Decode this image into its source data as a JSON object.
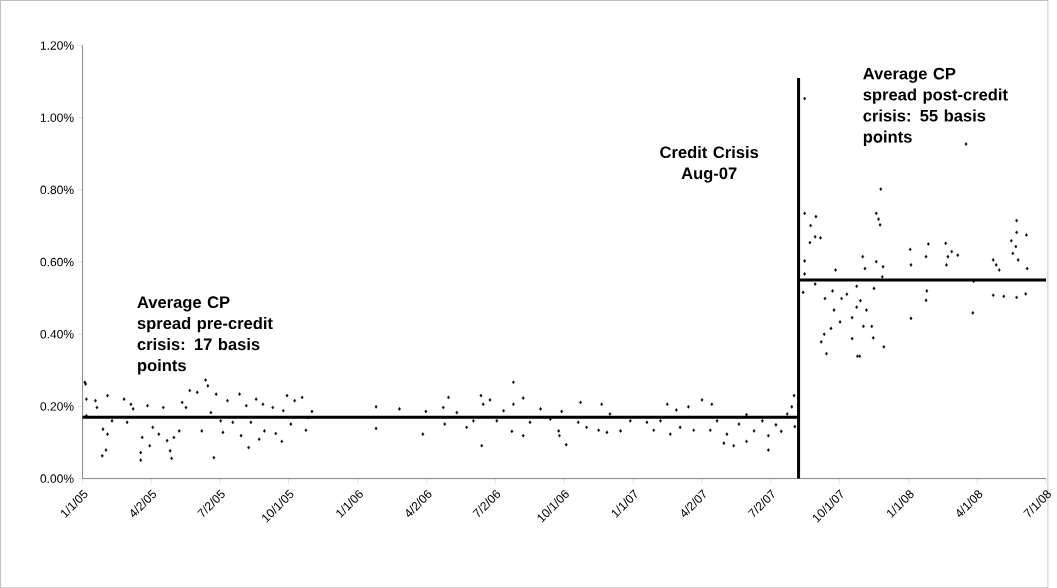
{
  "chart_data": {
    "type": "scatter",
    "marker": "diamond",
    "xlim": [
      "2005-01-01",
      "2008-07-01"
    ],
    "xticks": [
      {
        "value": "2005-01-01",
        "label": "1/1/05"
      },
      {
        "value": "2005-04-02",
        "label": "4/2/05"
      },
      {
        "value": "2005-07-02",
        "label": "7/2/05"
      },
      {
        "value": "2005-10-01",
        "label": "10/1/05"
      },
      {
        "value": "2006-01-01",
        "label": "1/1/06"
      },
      {
        "value": "2006-04-02",
        "label": "4/2/06"
      },
      {
        "value": "2006-07-02",
        "label": "7/2/06"
      },
      {
        "value": "2006-10-01",
        "label": "10/1/06"
      },
      {
        "value": "2007-01-01",
        "label": "1/1/07"
      },
      {
        "value": "2007-04-02",
        "label": "4/2/07"
      },
      {
        "value": "2007-07-02",
        "label": "7/2/07"
      },
      {
        "value": "2007-10-01",
        "label": "10/1/07"
      },
      {
        "value": "2008-01-01",
        "label": "1/1/08"
      },
      {
        "value": "2008-04-01",
        "label": "4/1/08"
      },
      {
        "value": "2008-07-01",
        "label": "7/1/08"
      }
    ],
    "ylim": [
      0,
      1.2
    ],
    "yticks": [
      {
        "value": 0,
        "label": "0.00%"
      },
      {
        "value": 0.2,
        "label": "0.20%"
      },
      {
        "value": 0.4,
        "label": "0.40%"
      },
      {
        "value": 0.6,
        "label": "0.60%"
      },
      {
        "value": 0.8,
        "label": "0.80%"
      },
      {
        "value": 1.0,
        "label": "1.00%"
      },
      {
        "value": 1.2,
        "label": "1.20%"
      }
    ],
    "series": [
      {
        "color": "#000000",
        "x": [
          "2005-01-04",
          "2005-01-05",
          "2005-01-06",
          "2005-01-06",
          "2005-01-18",
          "2005-01-20",
          "2005-01-27",
          "2005-01-28",
          "2005-02-01",
          "2005-02-03",
          "2005-02-03",
          "2005-02-09",
          "2005-02-25",
          "2005-03-01",
          "2005-03-06",
          "2005-03-09",
          "2005-03-19",
          "2005-03-19",
          "2005-03-21",
          "2005-03-28",
          "2005-03-31",
          "2005-04-04",
          "2005-04-12",
          "2005-04-18",
          "2005-04-23",
          "2005-04-27",
          "2005-04-29",
          "2005-05-02",
          "2005-05-09",
          "2005-05-13",
          "2005-05-18",
          "2005-05-23",
          "2005-06-02",
          "2005-06-08",
          "2005-06-13",
          "2005-06-16",
          "2005-06-20",
          "2005-06-24",
          "2005-06-27",
          "2005-07-03",
          "2005-07-06",
          "2005-07-12",
          "2005-07-19",
          "2005-07-28",
          "2005-07-30",
          "2005-08-06",
          "2005-08-09",
          "2005-08-12",
          "2005-08-19",
          "2005-08-23",
          "2005-08-28",
          "2005-08-30",
          "2005-09-10",
          "2005-09-14",
          "2005-09-22",
          "2005-09-24",
          "2005-09-29",
          "2005-10-04",
          "2005-10-09",
          "2005-10-19",
          "2005-10-24",
          "2005-10-27",
          "2005-11-01",
          "2006-01-25",
          "2006-01-25",
          "2006-02-25",
          "2006-03-28",
          "2006-04-01",
          "2006-04-24",
          "2006-04-26",
          "2006-05-01",
          "2006-05-12",
          "2006-05-25",
          "2006-06-03",
          "2006-06-13",
          "2006-06-14",
          "2006-06-16",
          "2006-06-25",
          "2006-07-04",
          "2006-07-13",
          "2006-07-24",
          "2006-07-26",
          "2006-07-26",
          "2006-08-08",
          "2006-08-08",
          "2006-08-17",
          "2006-08-31",
          "2006-09-13",
          "2006-09-24",
          "2006-09-25",
          "2006-09-28",
          "2006-10-04",
          "2006-10-20",
          "2006-10-23",
          "2006-10-31",
          "2006-11-16",
          "2006-11-20",
          "2006-11-27",
          "2006-12-01",
          "2006-12-15",
          "2006-12-28",
          "2007-01-19",
          "2007-01-28",
          "2007-02-06",
          "2007-02-15",
          "2007-02-19",
          "2007-02-27",
          "2007-03-04",
          "2007-03-15",
          "2007-03-22",
          "2007-04-02",
          "2007-04-13",
          "2007-04-15",
          "2007-04-22",
          "2007-05-01",
          "2007-05-05",
          "2007-05-14",
          "2007-05-21",
          "2007-05-31",
          "2007-05-31",
          "2007-06-10",
          "2007-06-21",
          "2007-06-29",
          "2007-06-29",
          "2007-07-09",
          "2007-07-16",
          "2007-07-24",
          "2007-07-30",
          "2007-08-02",
          "2007-08-03",
          "2007-08-14",
          "2007-08-16",
          "2007-08-16",
          "2007-08-16",
          "2007-08-16",
          "2007-08-23",
          "2007-08-24",
          "2007-08-30",
          "2007-08-30",
          "2007-08-31",
          "2007-09-06",
          "2007-09-07",
          "2007-09-11",
          "2007-09-12",
          "2007-09-14",
          "2007-09-20",
          "2007-09-22",
          "2007-09-24",
          "2007-09-26",
          "2007-10-02",
          "2007-10-04",
          "2007-10-11",
          "2007-10-18",
          "2007-10-18",
          "2007-10-24",
          "2007-10-24",
          "2007-10-25",
          "2007-10-28",
          "2007-10-29",
          "2007-11-01",
          "2007-11-02",
          "2007-11-04",
          "2007-11-06",
          "2007-11-13",
          "2007-11-15",
          "2007-11-16",
          "2007-11-19",
          "2007-11-19",
          "2007-11-22",
          "2007-11-24",
          "2007-11-25",
          "2007-11-27",
          "2007-11-28",
          "2007-11-29",
          "2008-01-03",
          "2008-01-04",
          "2008-01-04",
          "2008-01-24",
          "2008-01-24",
          "2008-01-25",
          "2008-01-27",
          "2008-02-19",
          "2008-02-20",
          "2008-02-22",
          "2008-02-27",
          "2008-03-06",
          "2008-03-17",
          "2008-03-26",
          "2008-03-27",
          "2008-04-22",
          "2008-04-22",
          "2008-04-26",
          "2008-04-30",
          "2008-05-06",
          "2008-05-16",
          "2008-05-18",
          "2008-05-22",
          "2008-05-23",
          "2008-05-23",
          "2008-05-23",
          "2008-05-25",
          "2008-06-04",
          "2008-06-05",
          "2008-06-06"
        ],
        "values": [
          0.267,
          0.262,
          0.22,
          0.174,
          0.216,
          0.197,
          0.063,
          0.137,
          0.079,
          0.23,
          0.123,
          0.16,
          0.22,
          0.156,
          0.206,
          0.193,
          0.072,
          0.051,
          0.114,
          0.202,
          0.091,
          0.142,
          0.123,
          0.197,
          0.105,
          0.077,
          0.056,
          0.114,
          0.132,
          0.211,
          0.197,
          0.244,
          0.239,
          0.132,
          0.273,
          0.257,
          0.183,
          0.058,
          0.234,
          0.16,
          0.128,
          0.216,
          0.156,
          0.234,
          0.119,
          0.202,
          0.086,
          0.156,
          0.22,
          0.109,
          0.206,
          0.132,
          0.197,
          0.125,
          0.103,
          0.188,
          0.23,
          0.151,
          0.216,
          0.225,
          0.134,
          0.169,
          0.186,
          0.199,
          0.139,
          0.193,
          0.123,
          0.186,
          0.197,
          0.151,
          0.225,
          0.183,
          0.142,
          0.16,
          0.23,
          0.091,
          0.206,
          0.218,
          0.16,
          0.188,
          0.131,
          0.267,
          0.206,
          0.119,
          0.223,
          0.156,
          0.193,
          0.165,
          0.132,
          0.119,
          0.186,
          0.094,
          0.156,
          0.211,
          0.142,
          0.134,
          0.206,
          0.128,
          0.179,
          0.132,
          0.16,
          0.156,
          0.134,
          0.16,
          0.206,
          0.123,
          0.19,
          0.142,
          0.199,
          0.134,
          0.218,
          0.134,
          0.206,
          0.16,
          0.098,
          0.123,
          0.091,
          0.151,
          0.103,
          0.177,
          0.132,
          0.16,
          0.079,
          0.119,
          0.149,
          0.131,
          0.179,
          0.199,
          0.23,
          0.144,
          0.516,
          1.053,
          0.735,
          0.603,
          0.567,
          0.654,
          0.701,
          0.67,
          0.539,
          0.726,
          0.667,
          0.379,
          0.4,
          0.499,
          0.346,
          0.416,
          0.52,
          0.467,
          0.578,
          0.434,
          0.499,
          0.511,
          0.388,
          0.446,
          0.533,
          0.475,
          0.339,
          0.339,
          0.493,
          0.615,
          0.422,
          0.582,
          0.467,
          0.422,
          0.39,
          0.527,
          0.601,
          0.735,
          0.719,
          0.703,
          0.802,
          0.559,
          0.587,
          0.365,
          0.635,
          0.444,
          0.592,
          0.615,
          0.494,
          0.52,
          0.65,
          0.652,
          0.592,
          0.615,
          0.629,
          0.619,
          0.927,
          0.459,
          0.547,
          0.606,
          0.508,
          0.592,
          0.578,
          0.505,
          0.659,
          0.624,
          0.643,
          0.715,
          0.682,
          0.502,
          0.606,
          0.512,
          0.675,
          0.582
        ]
      },
      {
        "type": "line",
        "marker": "none",
        "color": "#000000",
        "x": [
          "2005-01-01",
          "2007-08-08"
        ],
        "values": [
          0.17,
          0.17
        ]
      },
      {
        "type": "line",
        "marker": "none",
        "color": "#000000",
        "x": [
          "2007-08-08",
          "2008-07-01"
        ],
        "values": [
          0.55,
          0.55
        ]
      },
      {
        "type": "line",
        "marker": "none",
        "color": "#000000",
        "x": [
          "2007-08-08",
          "2007-08-08"
        ],
        "values": [
          0,
          1.11
        ]
      }
    ],
    "annotations": [
      "Average CP spread pre-credit crisis: 17 basis points",
      "Credit Crisis Aug-07",
      "Average CP spread post-credit crisis: 55 basis points"
    ]
  }
}
